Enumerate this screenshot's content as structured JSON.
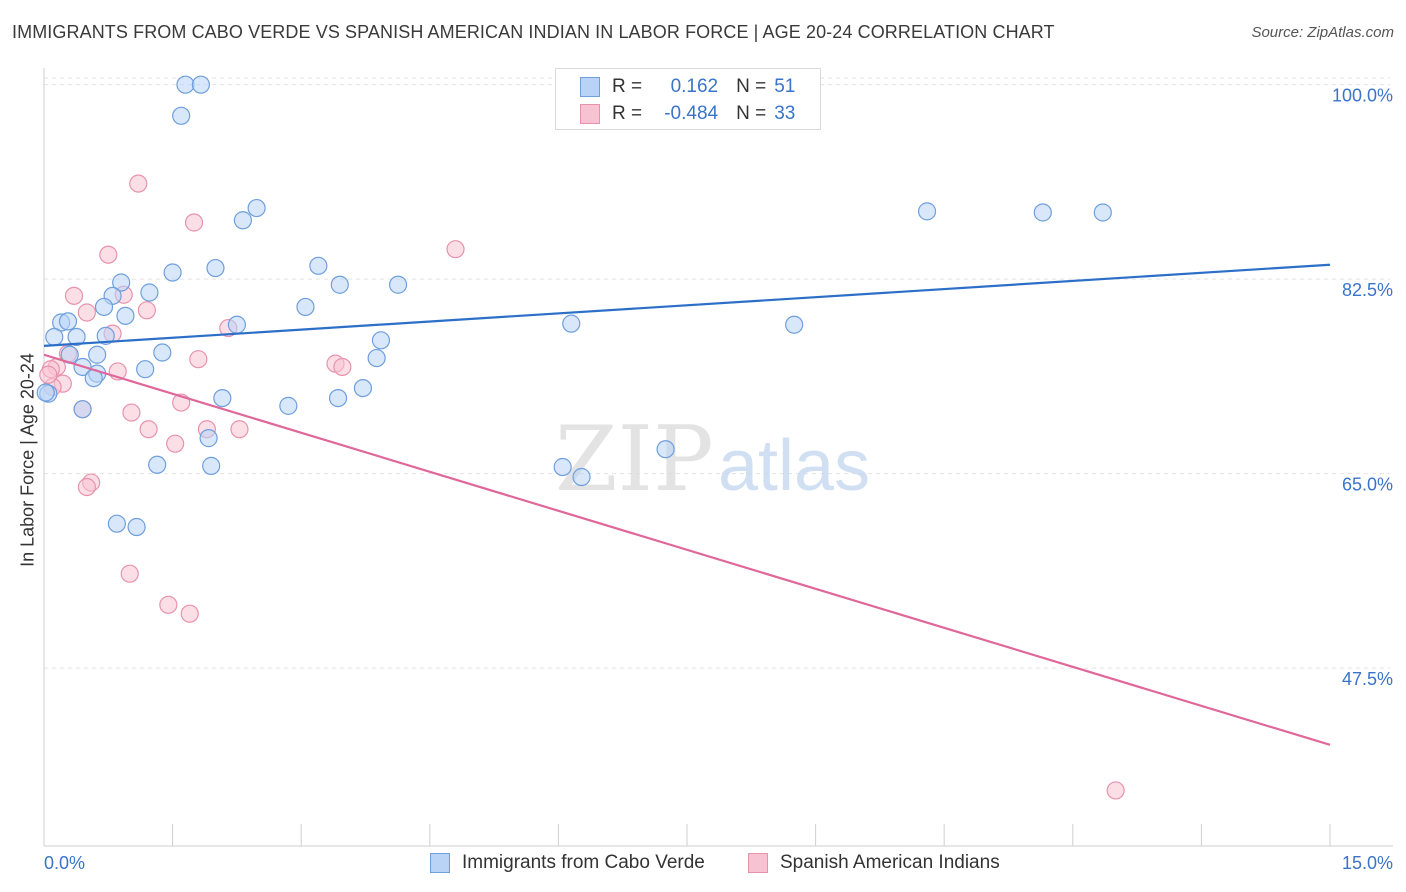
{
  "header": {
    "title": "IMMIGRANTS FROM CABO VERDE VS SPANISH AMERICAN INDIAN IN LABOR FORCE | AGE 20-24 CORRELATION CHART",
    "source": "Source: ZipAtlas.com"
  },
  "watermark": {
    "zip": "ZIP",
    "atlas": "atlas"
  },
  "legend": {
    "series1": {
      "r_label": "R =",
      "r_value": "0.162",
      "n_label": "N =",
      "n_value": "51"
    },
    "series2": {
      "r_label": "R =",
      "r_value": "-0.484",
      "n_label": "N =",
      "n_value": "33"
    }
  },
  "colors": {
    "blue_fill": "#b8d3f5",
    "blue_stroke": "#6f9fdc",
    "blue_line": "#2c6fc9",
    "pink_fill": "#f7c3d2",
    "pink_stroke": "#e893ae",
    "pink_line": "#e0679a",
    "tick_text": "#3a74c9",
    "grid": "#e3e3e3"
  },
  "chart_data": {
    "type": "scatter",
    "xlabel": "",
    "ylabel": "In Labor Force | Age 20-24",
    "xlim": [
      0,
      15
    ],
    "ylim": [
      31.5,
      101.5
    ],
    "x_tick_labels": [
      {
        "value": 0,
        "label": "0.0%"
      },
      {
        "value": 15,
        "label": "15.0%"
      }
    ],
    "y_tick_labels": [
      {
        "value": 100,
        "label": "100.0%"
      },
      {
        "value": 82.5,
        "label": "82.5%"
      },
      {
        "value": 65,
        "label": "65.0%"
      },
      {
        "value": 47.5,
        "label": "47.5%"
      }
    ],
    "grid": true,
    "legend_position": "bottom",
    "series": [
      {
        "name": "Immigrants from Cabo Verde",
        "color": "#6f9fdc",
        "points": [
          [
            1.65,
            100
          ],
          [
            1.83,
            100
          ],
          [
            1.6,
            97.2
          ],
          [
            2.48,
            88.9
          ],
          [
            2.32,
            87.8
          ],
          [
            10.3,
            88.6
          ],
          [
            11.65,
            88.5
          ],
          [
            12.35,
            88.5
          ],
          [
            3.2,
            83.7
          ],
          [
            1.5,
            83.1
          ],
          [
            2.0,
            83.5
          ],
          [
            3.45,
            82.0
          ],
          [
            4.13,
            82.0
          ],
          [
            0.9,
            82.2
          ],
          [
            1.23,
            81.3
          ],
          [
            0.8,
            81.0
          ],
          [
            0.7,
            80.0
          ],
          [
            3.05,
            80.0
          ],
          [
            0.95,
            79.2
          ],
          [
            0.2,
            78.6
          ],
          [
            0.28,
            78.7
          ],
          [
            2.25,
            78.4
          ],
          [
            6.15,
            78.5
          ],
          [
            8.75,
            78.4
          ],
          [
            0.12,
            77.3
          ],
          [
            0.38,
            77.3
          ],
          [
            0.72,
            77.4
          ],
          [
            3.93,
            77.0
          ],
          [
            1.38,
            75.9
          ],
          [
            0.3,
            75.7
          ],
          [
            0.62,
            75.7
          ],
          [
            3.88,
            75.4
          ],
          [
            0.45,
            74.6
          ],
          [
            1.18,
            74.4
          ],
          [
            0.62,
            74.0
          ],
          [
            0.58,
            73.6
          ],
          [
            3.72,
            72.7
          ],
          [
            0.05,
            72.2
          ],
          [
            2.08,
            71.8
          ],
          [
            3.43,
            71.8
          ],
          [
            2.85,
            71.1
          ],
          [
            0.45,
            70.8
          ],
          [
            1.92,
            68.2
          ],
          [
            7.25,
            67.2
          ],
          [
            1.32,
            65.8
          ],
          [
            1.95,
            65.7
          ],
          [
            6.05,
            65.6
          ],
          [
            6.27,
            64.7
          ],
          [
            0.85,
            60.5
          ],
          [
            1.08,
            60.2
          ],
          [
            0.02,
            72.3
          ]
        ]
      },
      {
        "name": "Spanish American Indians",
        "color": "#e893ae",
        "points": [
          [
            1.1,
            91.1
          ],
          [
            1.75,
            87.6
          ],
          [
            4.8,
            85.2
          ],
          [
            0.75,
            84.7
          ],
          [
            0.35,
            81.0
          ],
          [
            0.93,
            81.1
          ],
          [
            0.5,
            79.5
          ],
          [
            1.2,
            79.7
          ],
          [
            2.15,
            78.1
          ],
          [
            0.8,
            77.6
          ],
          [
            0.28,
            75.8
          ],
          [
            1.8,
            75.3
          ],
          [
            3.4,
            74.9
          ],
          [
            0.15,
            74.6
          ],
          [
            3.48,
            74.6
          ],
          [
            0.08,
            74.4
          ],
          [
            0.86,
            74.2
          ],
          [
            0.22,
            73.1
          ],
          [
            0.1,
            72.8
          ],
          [
            1.6,
            71.4
          ],
          [
            1.02,
            70.5
          ],
          [
            0.45,
            70.8
          ],
          [
            1.22,
            69.0
          ],
          [
            1.9,
            69.0
          ],
          [
            2.28,
            69.0
          ],
          [
            1.53,
            67.7
          ],
          [
            0.55,
            64.2
          ],
          [
            0.5,
            63.8
          ],
          [
            1.0,
            56.0
          ],
          [
            1.45,
            53.2
          ],
          [
            1.7,
            52.4
          ],
          [
            12.5,
            36.5
          ],
          [
            0.05,
            73.9
          ]
        ]
      }
    ],
    "trend_lines": [
      {
        "series": "Immigrants from Cabo Verde",
        "x": [
          0,
          15
        ],
        "y": [
          76.5,
          83.8
        ],
        "color": "#2c6fc9"
      },
      {
        "series": "Spanish American Indians",
        "x": [
          0,
          15
        ],
        "y": [
          75.7,
          40.6
        ],
        "color": "#e0679a"
      }
    ]
  }
}
